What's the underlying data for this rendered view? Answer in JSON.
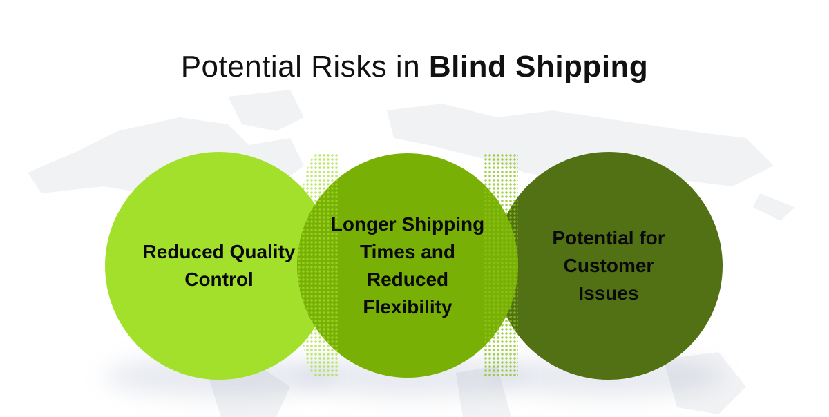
{
  "title": {
    "regular": "Potential Risks in ",
    "bold": "Blind Shipping"
  },
  "circles": [
    {
      "label": "Reduced Quality Control",
      "color": "#a3e02b"
    },
    {
      "label": "Longer Shipping Times and Reduced Flexibility",
      "color": "#78b006"
    },
    {
      "label": "Potential for Customer Issues",
      "color": "#527114"
    }
  ],
  "colors": {
    "background_map": "#f1f2f4",
    "text": "#0a0a0a"
  }
}
